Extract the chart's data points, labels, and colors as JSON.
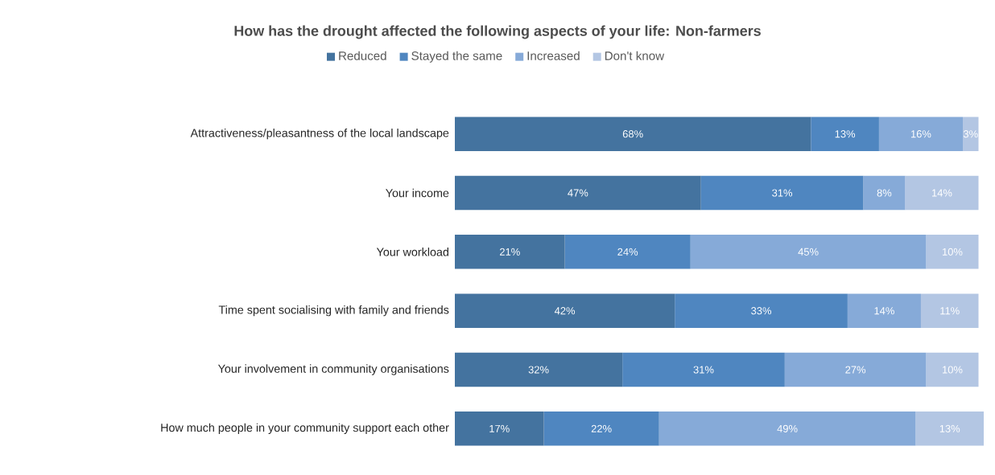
{
  "chart_data": {
    "type": "bar",
    "orientation": "horizontal",
    "stacked": true,
    "title": "How has the drought affected the following aspects of your life: Non-farmers",
    "categories": [
      "Attractiveness/pleasantness of the local landscape",
      "Your income",
      "Your workload",
      "Time spent socialising with family and friends",
      "Your involvement in community organisations",
      "How much people in your community support each other"
    ],
    "legend": "top",
    "tick_labels": "y",
    "series": [
      {
        "name": "Reduced",
        "color": "#44739f",
        "values": [
          68,
          47,
          21,
          42,
          32,
          17
        ],
        "value_labels": [
          "68%",
          "47%",
          "21%",
          "42%",
          "32%",
          "17%"
        ]
      },
      {
        "name": "Stayed the same",
        "color": "#4f86c0",
        "values": [
          13,
          31,
          24,
          33,
          31,
          22
        ],
        "value_labels": [
          "13%",
          "31%",
          "24%",
          "33%",
          "31%",
          "22%"
        ]
      },
      {
        "name": "Increased",
        "color": "#86aad8",
        "values": [
          16,
          8,
          45,
          14,
          27,
          49
        ],
        "value_labels": [
          "16%",
          "8%",
          "45%",
          "14%",
          "27%",
          "49%"
        ]
      },
      {
        "name": "Don't know",
        "color": "#b3c6e3",
        "values": [
          3,
          14,
          10,
          11,
          10,
          13
        ],
        "value_labels": [
          "3%",
          "14%",
          "10%",
          "11%",
          "10%",
          "13%"
        ]
      }
    ]
  }
}
